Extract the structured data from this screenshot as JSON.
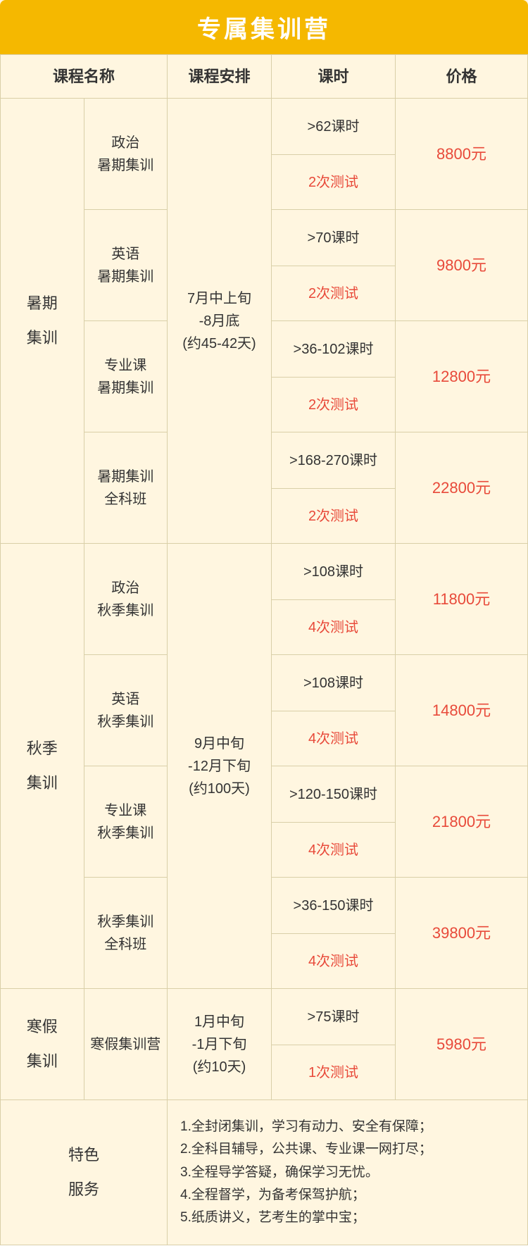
{
  "title": "专属集训营",
  "colors": {
    "headerBg": "#f5b800",
    "headerText": "#ffffff",
    "bodyBg": "#fff6e0",
    "border": "#d9cfa8",
    "textNormal": "#333333",
    "textAccent": "#e84a3a"
  },
  "headers": {
    "courseName": "课程名称",
    "schedule": "课程安排",
    "hours": "课时",
    "price": "价格"
  },
  "sections": [
    {
      "category": "暑期\n集训",
      "schedule": "7月中上旬\n-8月底\n(约45-42天)",
      "rows": [
        {
          "course": "政治\n暑期集训",
          "hours": ">62课时",
          "test": "2次测试",
          "price": "8800元"
        },
        {
          "course": "英语\n暑期集训",
          "hours": ">70课时",
          "test": "2次测试",
          "price": "9800元"
        },
        {
          "course": "专业课\n暑期集训",
          "hours": ">36-102课时",
          "test": "2次测试",
          "price": "12800元"
        },
        {
          "course": "暑期集训\n全科班",
          "hours": ">168-270课时",
          "test": "2次测试",
          "price": "22800元"
        }
      ]
    },
    {
      "category": "秋季\n集训",
      "schedule": "9月中旬\n-12月下旬\n(约100天)",
      "rows": [
        {
          "course": "政治\n秋季集训",
          "hours": ">108课时",
          "test": "4次测试",
          "price": "11800元"
        },
        {
          "course": "英语\n秋季集训",
          "hours": ">108课时",
          "test": "4次测试",
          "price": "14800元"
        },
        {
          "course": "专业课\n秋季集训",
          "hours": ">120-150课时",
          "test": "4次测试",
          "price": "21800元"
        },
        {
          "course": "秋季集训\n全科班",
          "hours": ">36-150课时",
          "test": "4次测试",
          "price": "39800元"
        }
      ]
    },
    {
      "category": "寒假\n集训",
      "schedule": "1月中旬\n-1月下旬\n(约10天)",
      "rows": [
        {
          "course": "寒假集训营",
          "hours": ">75课时",
          "test": "1次测试",
          "price": "5980元"
        }
      ]
    }
  ],
  "features": {
    "label": "特色\n服务",
    "items": [
      "1.全封闭集训，学习有动力、安全有保障；",
      "2.全科目辅导，公共课、专业课一网打尽；",
      "3.全程导学答疑，确保学习无忧。",
      "4.全程督学，为备考保驾护航；",
      "5.纸质讲义，艺考生的掌中宝；"
    ]
  }
}
